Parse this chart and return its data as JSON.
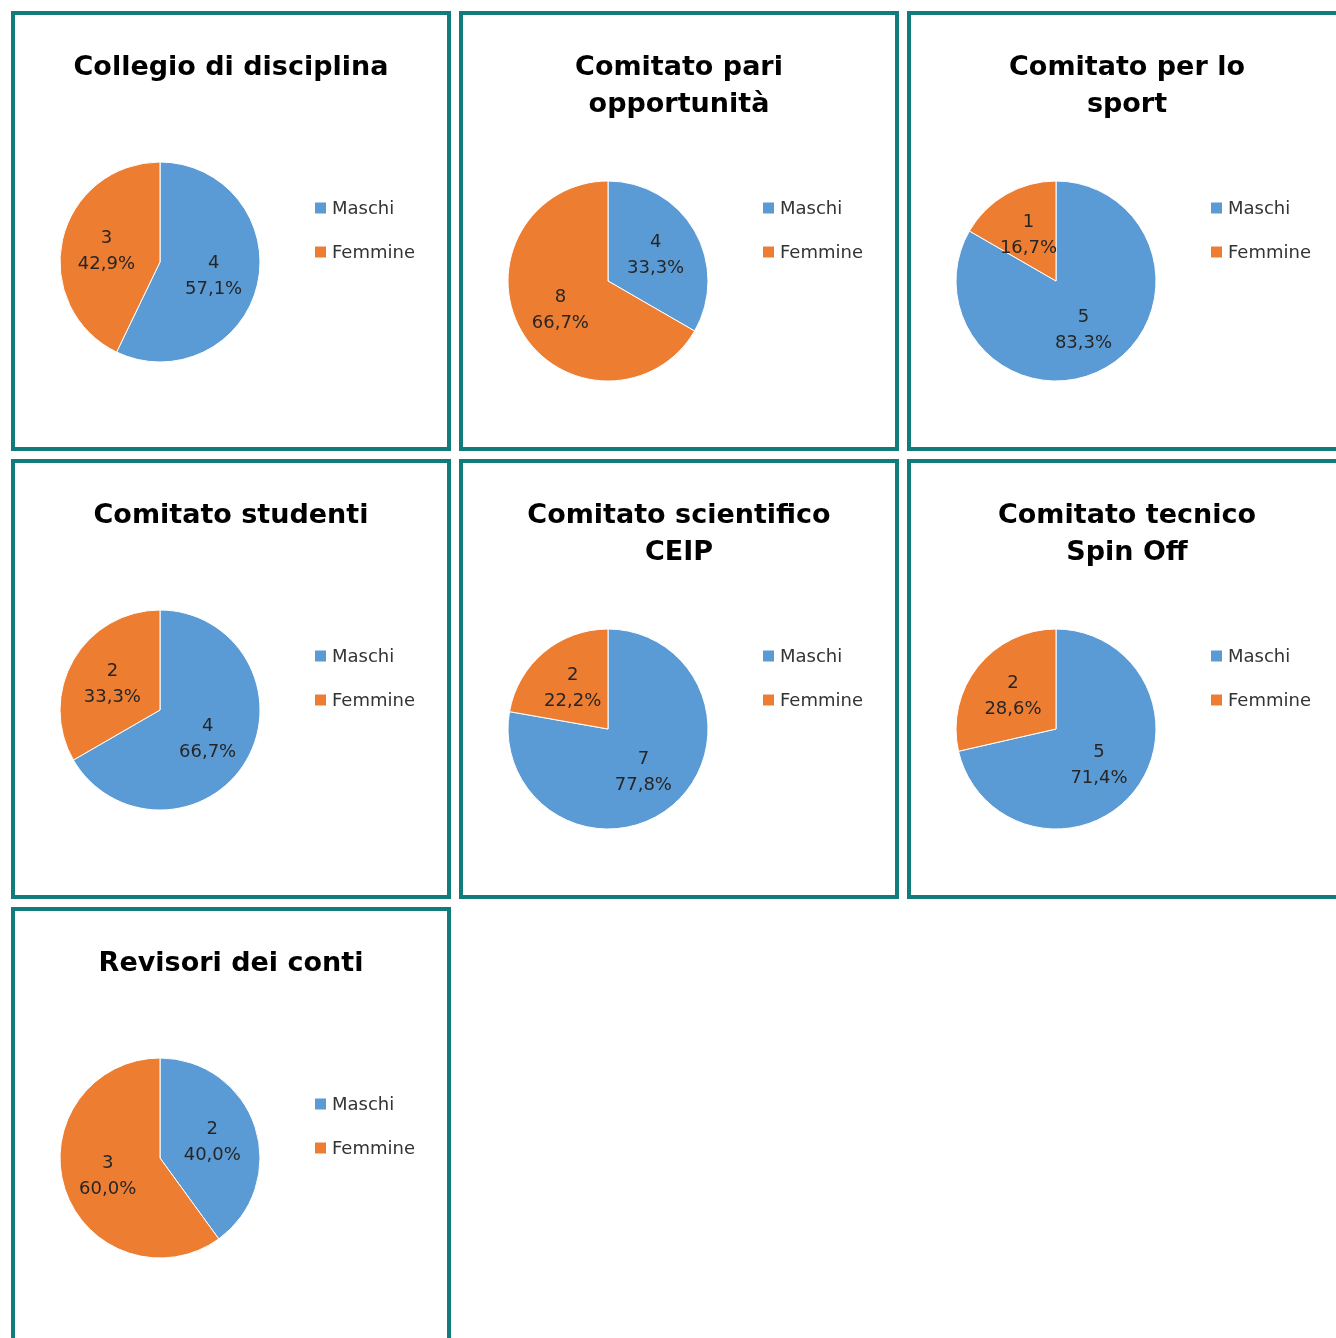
{
  "chart_data": [
    {
      "type": "pie",
      "title": "Collegio di disciplina",
      "categories": [
        "Maschi",
        "Femmine"
      ],
      "values": [
        4,
        3
      ],
      "colors": [
        "#5b9bd5",
        "#ed7d31"
      ],
      "value_labels": [
        "4\n57,1%",
        "3\n42,9%"
      ],
      "legend": "right"
    },
    {
      "type": "pie",
      "title": "Comitato pari opportunità",
      "categories": [
        "Maschi",
        "Femmine"
      ],
      "values": [
        4,
        8
      ],
      "colors": [
        "#5b9bd5",
        "#ed7d31"
      ],
      "value_labels": [
        "4\n33,3%",
        "8\n66,7%"
      ],
      "legend": "right"
    },
    {
      "type": "pie",
      "title": "Comitato per lo sport",
      "categories": [
        "Maschi",
        "Femmine"
      ],
      "values": [
        5,
        1
      ],
      "colors": [
        "#5b9bd5",
        "#ed7d31"
      ],
      "value_labels": [
        "5\n83,3%",
        "1\n16,7%"
      ],
      "legend": "right"
    },
    {
      "type": "pie",
      "title": "Comitato studenti",
      "categories": [
        "Maschi",
        "Femmine"
      ],
      "values": [
        4,
        2
      ],
      "colors": [
        "#5b9bd5",
        "#ed7d31"
      ],
      "value_labels": [
        "4\n66,7%",
        "2\n33,3%"
      ],
      "legend": "right"
    },
    {
      "type": "pie",
      "title": "Comitato scientifico CEIP",
      "categories": [
        "Maschi",
        "Femmine"
      ],
      "values": [
        7,
        2
      ],
      "colors": [
        "#5b9bd5",
        "#ed7d31"
      ],
      "value_labels": [
        "7\n77,8%",
        "2\n22,2%"
      ],
      "legend": "right"
    },
    {
      "type": "pie",
      "title": "Comitato tecnico Spin Off",
      "categories": [
        "Maschi",
        "Femmine"
      ],
      "values": [
        5,
        2
      ],
      "colors": [
        "#5b9bd5",
        "#ed7d31"
      ],
      "value_labels": [
        "5\n71,4%",
        "2\n28,6%"
      ],
      "legend": "right"
    },
    {
      "type": "pie",
      "title": "Revisori dei conti",
      "categories": [
        "Maschi",
        "Femmine"
      ],
      "values": [
        2,
        3
      ],
      "colors": [
        "#5b9bd5",
        "#ed7d31"
      ],
      "value_labels": [
        "2\n40,0%",
        "3\n60,0%"
      ],
      "legend": "right"
    }
  ]
}
